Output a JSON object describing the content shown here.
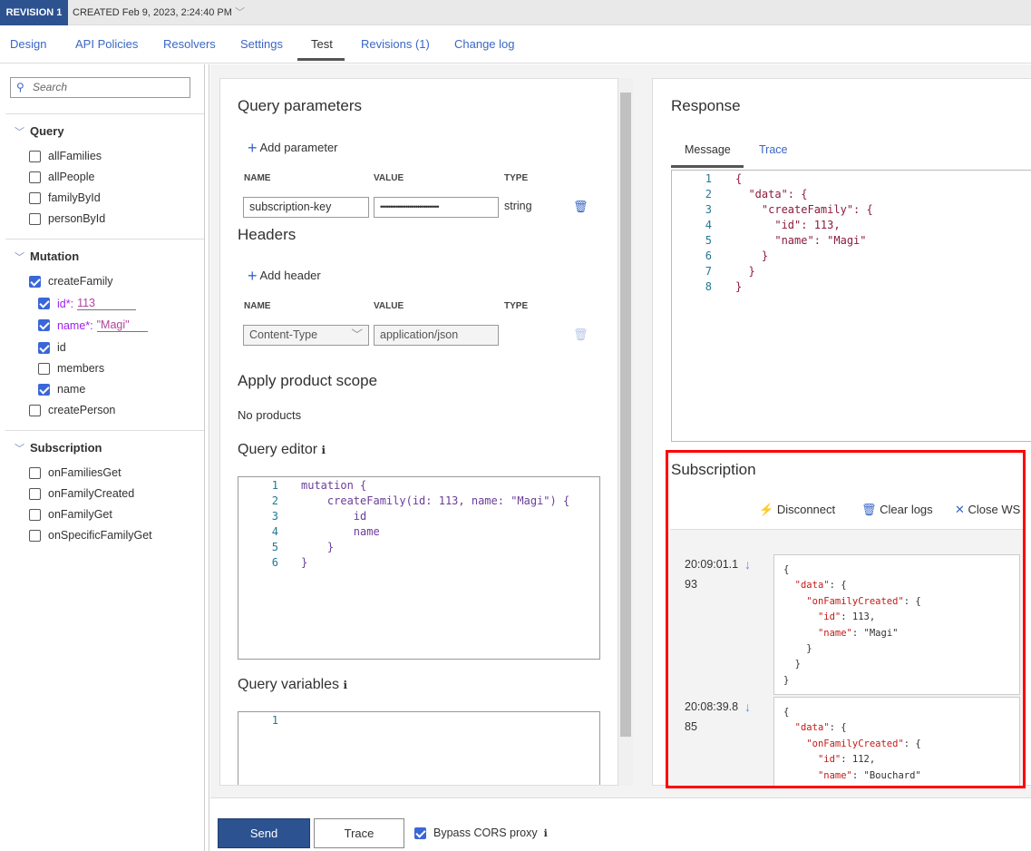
{
  "header": {
    "revision": "REVISION 1",
    "created": "CREATED Feb 9, 2023, 2:24:40 PM"
  },
  "tabs": [
    "Design",
    "API Policies",
    "Resolvers",
    "Settings",
    "Test",
    "Revisions (1)",
    "Change log"
  ],
  "sidebar": {
    "search_placeholder": "Search",
    "query": {
      "title": "Query",
      "items": [
        "allFamilies",
        "allPeople",
        "familyById",
        "personById"
      ]
    },
    "mutation": {
      "title": "Mutation",
      "createFamily": "createFamily",
      "arg_id_label": "id*:",
      "arg_id_value": "113",
      "arg_name_label": "name*:",
      "arg_name_value": "\"Magi\"",
      "fields": [
        "id",
        "members",
        "name"
      ],
      "createPerson": "createPerson"
    },
    "subscription": {
      "title": "Subscription",
      "items": [
        "onFamiliesGet",
        "onFamilyCreated",
        "onFamilyGet",
        "onSpecificFamilyGet"
      ]
    }
  },
  "request": {
    "query_params_title": "Query parameters",
    "add_parameter": "Add parameter",
    "cols": {
      "name": "NAME",
      "value": "VALUE",
      "type": "TYPE"
    },
    "param": {
      "name": "subscription-key",
      "value": "••••••••••••••••••••••••••••••",
      "type": "string"
    },
    "headers_title": "Headers",
    "add_header": "Add header",
    "header": {
      "name": "Content-Type",
      "value": "application/json"
    },
    "product_scope_title": "Apply product scope",
    "no_products": "No products",
    "query_editor_title": "Query editor",
    "query_lines": [
      "mutation {",
      "    createFamily(id: 113, name: \"Magi\") {",
      "        id",
      "        name",
      "    }",
      "}"
    ],
    "query_variables_title": "Query variables",
    "variables_lines": [
      ""
    ]
  },
  "response": {
    "title": "Response",
    "tabs": [
      "Message",
      "Trace"
    ],
    "lines": [
      "{",
      "  \"data\": {",
      "    \"createFamily\": {",
      "      \"id\": 113,",
      "      \"name\": \"Magi\"",
      "    }",
      "  }",
      "}"
    ]
  },
  "subscription": {
    "title": "Subscription",
    "disconnect": "Disconnect",
    "clear_logs": "Clear logs",
    "close_ws": "Close WS",
    "logs": [
      {
        "time": "20:09:01.193",
        "id": "113",
        "name": "\"Magi\""
      },
      {
        "time": "20:08:39.885",
        "id": "112",
        "name": "\"Bouchard\""
      }
    ]
  },
  "footer": {
    "send": "Send",
    "trace": "Trace",
    "bypass_cors": "Bypass CORS proxy",
    "bypass_checked": true
  },
  "colors": {
    "accent": "#2d5290",
    "link": "#3a67c4",
    "highlight": "#ff0000"
  }
}
